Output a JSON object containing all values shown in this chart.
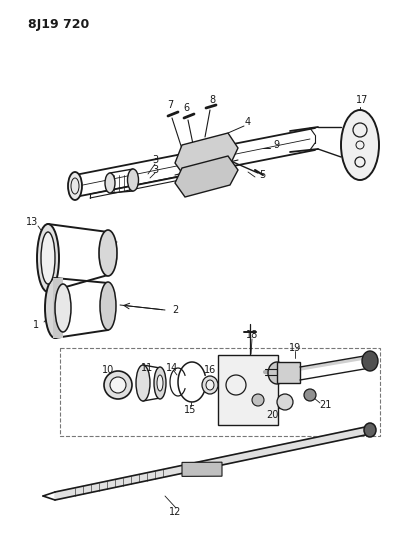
{
  "title": "8J19 720",
  "bg_color": "#ffffff",
  "line_color": "#1a1a1a",
  "figsize": [
    4.07,
    5.33
  ],
  "dpi": 100
}
